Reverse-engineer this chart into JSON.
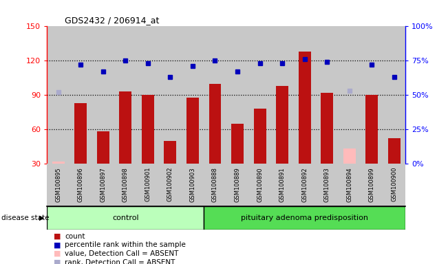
{
  "title": "GDS2432 / 206914_at",
  "samples": [
    "GSM100895",
    "GSM100896",
    "GSM100897",
    "GSM100898",
    "GSM100901",
    "GSM100902",
    "GSM100903",
    "GSM100888",
    "GSM100889",
    "GSM100890",
    "GSM100891",
    "GSM100892",
    "GSM100893",
    "GSM100894",
    "GSM100899",
    "GSM100900"
  ],
  "bar_values": [
    null,
    83,
    58,
    93,
    90,
    50,
    88,
    100,
    65,
    78,
    98,
    128,
    92,
    null,
    90,
    52
  ],
  "bar_absent": [
    32,
    null,
    null,
    null,
    null,
    null,
    null,
    null,
    null,
    null,
    null,
    null,
    null,
    43,
    null,
    null
  ],
  "dot_percentile": [
    52,
    72,
    67,
    75,
    73,
    63,
    71,
    75,
    67,
    73,
    73,
    76,
    74,
    53,
    72,
    63
  ],
  "dot_absent": [
    true,
    false,
    false,
    false,
    false,
    false,
    false,
    false,
    false,
    false,
    false,
    false,
    false,
    true,
    false,
    false
  ],
  "control_count": 7,
  "ylim_left": [
    30,
    150
  ],
  "ylim_right": [
    0,
    100
  ],
  "yticks_left": [
    30,
    60,
    90,
    120,
    150
  ],
  "yticks_right": [
    0,
    25,
    50,
    75,
    100
  ],
  "ytick_labels_right": [
    "0%",
    "25%",
    "50%",
    "75%",
    "100%"
  ],
  "hlines": [
    60,
    90,
    120
  ],
  "bar_color": "#BB1111",
  "bar_absent_color": "#FFBBBB",
  "dot_color": "#0000BB",
  "dot_absent_color": "#AAAACC",
  "bg_color": "#C8C8C8",
  "control_label": "control",
  "disease_label": "pituitary adenoma predisposition",
  "disease_state_label": "disease state",
  "group_control_color": "#BBFFBB",
  "group_disease_color": "#55DD55",
  "legend_items": [
    {
      "label": "count",
      "color": "#BB1111"
    },
    {
      "label": "percentile rank within the sample",
      "color": "#0000BB"
    },
    {
      "label": "value, Detection Call = ABSENT",
      "color": "#FFBBBB"
    },
    {
      "label": "rank, Detection Call = ABSENT",
      "color": "#AAAACC"
    }
  ]
}
